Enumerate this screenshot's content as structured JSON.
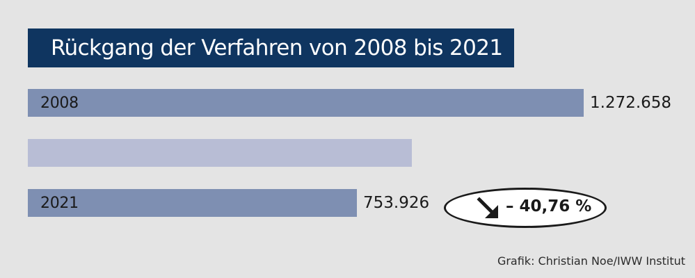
{
  "chart_data": {
    "type": "bar",
    "orientation": "horizontal",
    "title": "Rückgang der Verfahren von 2008 bis 2021",
    "categories": [
      "2008",
      "",
      "2021"
    ],
    "values": [
      1272658,
      880000,
      753926
    ],
    "value_labels": [
      "1.272.658",
      "",
      "753.926"
    ],
    "bar_colors": [
      "#7e8fb2",
      "#b8bdd5",
      "#7e8fb2"
    ],
    "annotation": {
      "text": "– 40,76 %",
      "icon": "arrow-down-right-icon"
    },
    "xlim": [
      0,
      1272658
    ],
    "grid": false
  },
  "credit": "Grafik: Christian Noe/IWW Institut",
  "colors": {
    "background": "#e4e4e4",
    "title_bg": "#0f3560",
    "title_fg": "#ffffff",
    "bar_dark": "#7e8fb2",
    "bar_light": "#b8bdd5"
  }
}
